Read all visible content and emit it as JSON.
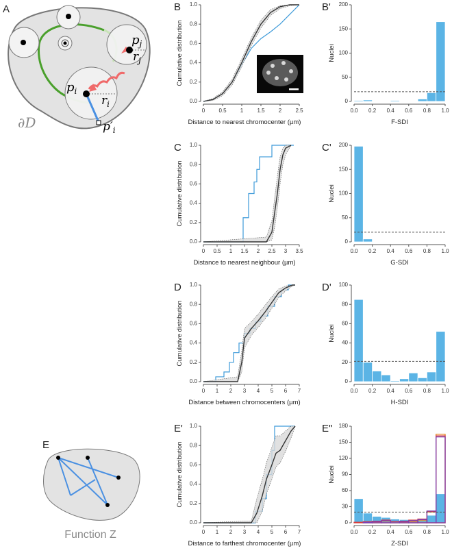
{
  "diagram_a": {
    "label": "A",
    "boundary": "∂D",
    "points": [
      {
        "base": "p",
        "sub": "i"
      },
      {
        "base": "p",
        "sub": "j"
      },
      {
        "base": "r",
        "sub": "i"
      },
      {
        "base": "r",
        "sub": "j"
      },
      {
        "base": "p′",
        "sub": "i"
      }
    ]
  },
  "diagram_e": {
    "label": "E",
    "caption": "Function Z"
  },
  "chart_data": [
    {
      "type": "line",
      "panel_label": "B",
      "xlabel": "Distance to nearest chromocenter (µm)",
      "ylabel": "Cumulative distribution",
      "xlim": [
        0,
        2.5
      ],
      "xticks": [
        0,
        0.5,
        1,
        1.5,
        2,
        2.5
      ],
      "ylim": [
        0,
        1
      ],
      "yticks": [
        {
          "value": 0,
          "label": "0.0"
        },
        {
          "value": 0.2,
          "label": "0.2"
        },
        {
          "value": 0.4,
          "label": "0.4"
        },
        {
          "value": 0.6,
          "label": "0.6"
        },
        {
          "value": 0.8,
          "label": "0.8"
        },
        {
          "value": 1,
          "label": "1.0"
        }
      ],
      "inset_image": true,
      "series": [
        {
          "color": "#3d9ad9",
          "step": false,
          "x": [
            0,
            0.25,
            0.5,
            0.75,
            1,
            1.25,
            1.5,
            1.75,
            2,
            2.25,
            2.5
          ],
          "values": [
            0,
            0.02,
            0.08,
            0.2,
            0.38,
            0.55,
            0.65,
            0.72,
            0.8,
            0.9,
            1
          ]
        },
        {
          "color": "#333333",
          "step": false,
          "x": [
            0,
            0.25,
            0.5,
            0.75,
            1,
            1.25,
            1.5,
            1.75,
            2,
            2.25,
            2.5
          ],
          "values": [
            0,
            0.02,
            0.08,
            0.2,
            0.4,
            0.62,
            0.8,
            0.92,
            0.98,
            1,
            1
          ],
          "lower": [
            0,
            0.01,
            0.06,
            0.17,
            0.36,
            0.58,
            0.76,
            0.89,
            0.96,
            0.99,
            1
          ],
          "upper": [
            0,
            0.03,
            0.1,
            0.23,
            0.44,
            0.66,
            0.84,
            0.95,
            0.99,
            1,
            1
          ]
        }
      ]
    },
    {
      "type": "histogram",
      "panel_label": "B'",
      "xlabel": "F-SDI",
      "ylabel": "Nuclei",
      "xlim": [
        0,
        1
      ],
      "xticks": [
        {
          "value": 0,
          "label": "0.0"
        },
        {
          "value": 0.2,
          "label": "0.2"
        },
        {
          "value": 0.4,
          "label": "0.4"
        },
        {
          "value": 0.6,
          "label": "0.6"
        },
        {
          "value": 0.8,
          "label": "0.8"
        },
        {
          "value": 1,
          "label": "1.0"
        }
      ],
      "ylim": [
        0,
        200
      ],
      "yticks": [
        0,
        50,
        100,
        150,
        200
      ],
      "reference_line": 20,
      "bins": [
        0,
        0.1,
        0.2,
        0.3,
        0.4,
        0.5,
        0.6,
        0.7,
        0.8,
        0.9,
        1
      ],
      "series": [
        {
          "color": "#5bb4e5",
          "style": "bar",
          "values": [
            2,
            3,
            1,
            0,
            2,
            1,
            1,
            5,
            18,
            165
          ]
        }
      ]
    },
    {
      "type": "line",
      "panel_label": "C",
      "xlabel": "Distance to nearest neighbour (µm)",
      "ylabel": "Cumulative distribution",
      "xlim": [
        0,
        3.5
      ],
      "xticks": [
        0,
        0.5,
        1,
        1.5,
        2,
        2.5,
        3,
        3.5
      ],
      "ylim": [
        0,
        1
      ],
      "yticks": [
        {
          "value": 0,
          "label": "0.0"
        },
        {
          "value": 0.2,
          "label": "0.2"
        },
        {
          "value": 0.4,
          "label": "0.4"
        },
        {
          "value": 0.6,
          "label": "0.6"
        },
        {
          "value": 0.8,
          "label": "0.8"
        },
        {
          "value": 1,
          "label": "1.0"
        }
      ],
      "series": [
        {
          "color": "#3d9ad9",
          "step": true,
          "x": [
            0,
            1.45,
            1.65,
            1.85,
            1.95,
            2.05,
            2.5,
            3.3
          ],
          "values": [
            0,
            0.25,
            0.5,
            0.62,
            0.75,
            0.88,
            1,
            1
          ]
        },
        {
          "color": "#333333",
          "step": false,
          "x": [
            0,
            2.3,
            2.5,
            2.6,
            2.7,
            2.8,
            2.9,
            3,
            3.2
          ],
          "values": [
            0,
            0,
            0.1,
            0.3,
            0.5,
            0.75,
            0.9,
            0.97,
            1
          ],
          "lower": [
            0,
            0,
            0.02,
            0.15,
            0.35,
            0.6,
            0.8,
            0.9,
            1
          ],
          "upper": [
            0,
            0.05,
            0.22,
            0.45,
            0.68,
            0.88,
            0.97,
            1,
            1
          ]
        }
      ]
    },
    {
      "type": "histogram",
      "panel_label": "C'",
      "xlabel": "G-SDI",
      "ylabel": "Nuclei",
      "xlim": [
        0,
        1
      ],
      "xticks": [
        {
          "value": 0,
          "label": "0.0"
        },
        {
          "value": 0.2,
          "label": "0.2"
        },
        {
          "value": 0.4,
          "label": "0.4"
        },
        {
          "value": 0.6,
          "label": "0.6"
        },
        {
          "value": 0.8,
          "label": "0.8"
        },
        {
          "value": 1,
          "label": "1.0"
        }
      ],
      "ylim": [
        0,
        200
      ],
      "yticks": [
        0,
        50,
        100,
        150,
        200
      ],
      "reference_line": 20,
      "bins": [
        0,
        0.1,
        0.2,
        0.3,
        0.4,
        0.5,
        0.6,
        0.7,
        0.8,
        0.9,
        1
      ],
      "series": [
        {
          "color": "#5bb4e5",
          "style": "bar",
          "values": [
            198,
            6,
            0,
            0,
            0,
            0,
            0,
            0,
            0,
            0
          ]
        }
      ]
    },
    {
      "type": "line",
      "panel_label": "D",
      "xlabel": "Distance between chromocenters (µm)",
      "ylabel": "Cumulative distribution",
      "xlim": [
        0,
        7
      ],
      "xticks": [
        0,
        1,
        2,
        3,
        4,
        5,
        6,
        7
      ],
      "ylim": [
        0,
        1
      ],
      "yticks": [
        {
          "value": 0,
          "label": "0.0"
        },
        {
          "value": 0.2,
          "label": "0.2"
        },
        {
          "value": 0.4,
          "label": "0.4"
        },
        {
          "value": 0.6,
          "label": "0.6"
        },
        {
          "value": 0.8,
          "label": "0.8"
        },
        {
          "value": 1,
          "label": "1.0"
        }
      ],
      "series": [
        {
          "color": "#3d9ad9",
          "step": true,
          "x": [
            0,
            0.9,
            1.5,
            1.9,
            2.2,
            2.6,
            3,
            3.4,
            3.8,
            4.2,
            4.7,
            5.2,
            5.7,
            6.2,
            6.7
          ],
          "values": [
            0,
            0.05,
            0.1,
            0.2,
            0.3,
            0.4,
            0.5,
            0.55,
            0.62,
            0.68,
            0.78,
            0.88,
            0.95,
            1,
            1
          ]
        },
        {
          "color": "#333333",
          "step": false,
          "x": [
            0,
            2.5,
            2.8,
            3,
            3.5,
            4,
            4.5,
            5,
            5.5,
            6,
            6.5,
            6.7
          ],
          "values": [
            0,
            0,
            0.2,
            0.45,
            0.55,
            0.63,
            0.72,
            0.82,
            0.92,
            0.97,
            1,
            1
          ],
          "lower": [
            0,
            0,
            0.1,
            0.35,
            0.48,
            0.56,
            0.65,
            0.76,
            0.87,
            0.94,
            0.99,
            1
          ],
          "upper": [
            0,
            0.05,
            0.32,
            0.55,
            0.62,
            0.7,
            0.79,
            0.88,
            0.96,
            0.99,
            1,
            1
          ]
        }
      ]
    },
    {
      "type": "histogram",
      "panel_label": "D'",
      "xlabel": "H-SDI",
      "ylabel": "Nuclei",
      "xlim": [
        0,
        1
      ],
      "xticks": [
        {
          "value": 0,
          "label": "0.0"
        },
        {
          "value": 0.2,
          "label": "0.2"
        },
        {
          "value": 0.4,
          "label": "0.4"
        },
        {
          "value": 0.6,
          "label": "0.6"
        },
        {
          "value": 0.8,
          "label": "0.8"
        },
        {
          "value": 1,
          "label": "1.0"
        }
      ],
      "ylim": [
        0,
        100
      ],
      "yticks": [
        0,
        20,
        40,
        60,
        80,
        100
      ],
      "reference_line": 21,
      "bins": [
        0,
        0.1,
        0.2,
        0.3,
        0.4,
        0.5,
        0.6,
        0.7,
        0.8,
        0.9,
        1
      ],
      "series": [
        {
          "color": "#5bb4e5",
          "style": "bar",
          "values": [
            85,
            20,
            11,
            7,
            1,
            3,
            9,
            4,
            10,
            52
          ]
        }
      ]
    },
    {
      "type": "line",
      "panel_label": "E'",
      "xlabel": "Distance to farthest chromocenter (µm)",
      "ylabel": "Cumulative distribution",
      "xlim": [
        0,
        7
      ],
      "xticks": [
        0,
        1,
        2,
        3,
        4,
        5,
        6,
        7
      ],
      "ylim": [
        0,
        1
      ],
      "yticks": [
        {
          "value": 0,
          "label": "0.0"
        },
        {
          "value": 0.2,
          "label": "0.2"
        },
        {
          "value": 0.4,
          "label": "0.4"
        },
        {
          "value": 0.6,
          "label": "0.6"
        },
        {
          "value": 0.8,
          "label": "0.8"
        },
        {
          "value": 1,
          "label": "1.0"
        }
      ],
      "series": [
        {
          "color": "#3d9ad9",
          "step": true,
          "x": [
            0,
            3.8,
            4.3,
            4.6,
            5,
            5.2,
            6.7
          ],
          "values": [
            0,
            0.12,
            0.25,
            0.5,
            0.75,
            1,
            1
          ]
        },
        {
          "color": "#333333",
          "step": false,
          "x": [
            0,
            3.5,
            3.9,
            4.3,
            4.6,
            5,
            5.3,
            5.6,
            6,
            6.4,
            6.7
          ],
          "values": [
            0,
            0,
            0.1,
            0.28,
            0.45,
            0.6,
            0.72,
            0.75,
            0.85,
            0.95,
            1
          ],
          "lower": [
            0,
            0,
            0,
            0.12,
            0.3,
            0.45,
            0.58,
            0.62,
            0.74,
            0.88,
            1
          ],
          "upper": [
            0,
            0.02,
            0.25,
            0.45,
            0.62,
            0.78,
            0.9,
            0.9,
            0.95,
            1,
            1
          ]
        }
      ]
    },
    {
      "type": "histogram",
      "panel_label": "E''",
      "xlabel": "Z-SDI",
      "ylabel": "Nuclei",
      "xlim": [
        0,
        1
      ],
      "xticks": [
        {
          "value": 0,
          "label": "0.0"
        },
        {
          "value": 0.2,
          "label": "0.2"
        },
        {
          "value": 0.4,
          "label": "0.4"
        },
        {
          "value": 0.6,
          "label": "0.6"
        },
        {
          "value": 0.8,
          "label": "0.8"
        },
        {
          "value": 1,
          "label": "1.0"
        }
      ],
      "ylim": [
        0,
        180
      ],
      "yticks": [
        0,
        30,
        60,
        90,
        120,
        150,
        180
      ],
      "reference_line": 20,
      "bins": [
        0,
        0.1,
        0.2,
        0.3,
        0.4,
        0.5,
        0.6,
        0.7,
        0.8,
        0.9,
        1
      ],
      "series": [
        {
          "color": "#5bb4e5",
          "style": "bar",
          "values": [
            45,
            18,
            12,
            10,
            7,
            6,
            5,
            8,
            14,
            54
          ]
        },
        {
          "color": "#e8892b",
          "style": "outline",
          "values": [
            0,
            2,
            1,
            3,
            2,
            1,
            2,
            4,
            20,
            165
          ]
        },
        {
          "color": "#d63b3b",
          "style": "outline",
          "values": [
            1,
            2,
            3,
            5,
            3,
            3,
            5,
            7,
            21,
            162
          ]
        },
        {
          "color": "#7b3fb5",
          "style": "outline",
          "values": [
            0,
            1,
            2,
            4,
            3,
            2,
            4,
            6,
            22,
            160
          ]
        }
      ]
    }
  ]
}
